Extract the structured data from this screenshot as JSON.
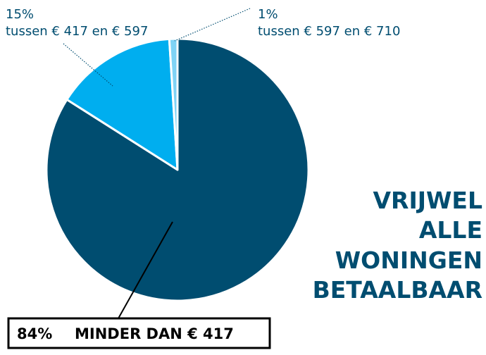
{
  "chart_data": {
    "type": "pie",
    "title": [
      "VRIJWEL",
      "ALLE",
      "WONINGEN",
      "BETAALBAAR"
    ],
    "categories": [
      "MINDER DAN € 417",
      "tussen € 417 en € 597",
      "tussen € 597 en € 710"
    ],
    "values": [
      84,
      15,
      1
    ],
    "value_labels": [
      "84%",
      "15%",
      "1%"
    ],
    "colors": [
      "#004d70",
      "#00aeef",
      "#7fd3f5"
    ]
  }
}
